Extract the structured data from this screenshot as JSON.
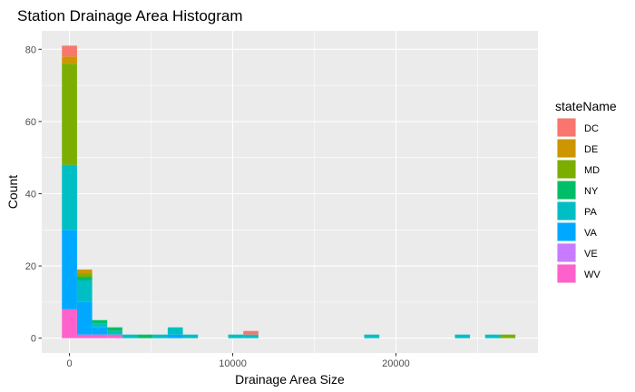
{
  "chart_data": {
    "type": "bar",
    "title": "Station Drainage Area Histogram",
    "xlabel": "Drainage Area Size",
    "ylabel": "Count",
    "xlim": [
      -1700,
      28700
    ],
    "ylim": [
      -4.1,
      85.1
    ],
    "x_ticks": [
      0,
      10000,
      20000
    ],
    "x_tick_labels": [
      "0",
      "10000",
      "20000"
    ],
    "y_ticks": [
      0,
      20,
      40,
      60,
      80
    ],
    "y_tick_labels": [
      "0",
      "20",
      "40",
      "60",
      "80"
    ],
    "grid": true,
    "legend_position": "right",
    "legend_title": "stateName",
    "bin_centers": [
      0,
      926,
      1852,
      2778,
      3704,
      4630,
      5556,
      6482,
      7408,
      8334,
      9260,
      10186,
      11112,
      12038,
      12964,
      13890,
      14816,
      15742,
      16668,
      17594,
      18520,
      19446,
      20372,
      21298,
      22224,
      23150,
      24076,
      25002,
      25928,
      26854
    ],
    "bin_width": 926,
    "series": [
      {
        "name": "WV",
        "color": "#FF61CC",
        "values": [
          8,
          1,
          1,
          1,
          0,
          0,
          0,
          0,
          0,
          0,
          0,
          0,
          0,
          0,
          0,
          0,
          0,
          0,
          0,
          0,
          0,
          0,
          0,
          0,
          0,
          0,
          0,
          0,
          0,
          0
        ]
      },
      {
        "name": "VE",
        "color": "#C77CFF",
        "values": [
          0,
          0,
          0,
          0,
          0,
          0,
          0,
          0,
          0,
          0,
          0,
          0,
          0,
          0,
          0,
          0,
          0,
          0,
          0,
          0,
          0,
          0,
          0,
          0,
          0,
          0,
          0,
          0,
          0,
          0
        ]
      },
      {
        "name": "VA",
        "color": "#00A9FF",
        "values": [
          22,
          9,
          2,
          0,
          0,
          0,
          0,
          1,
          0,
          0,
          0,
          0,
          0,
          0,
          0,
          0,
          0,
          0,
          0,
          0,
          0,
          0,
          0,
          0,
          0,
          0,
          0,
          0,
          0,
          0
        ]
      },
      {
        "name": "PA",
        "color": "#00BFC4",
        "values": [
          18,
          6,
          1,
          1,
          1,
          0,
          1,
          2,
          1,
          0,
          0,
          1,
          1,
          0,
          0,
          0,
          0,
          0,
          0,
          0,
          1,
          0,
          0,
          0,
          0,
          0,
          1,
          0,
          1,
          0
        ]
      },
      {
        "name": "NY",
        "color": "#00BE67",
        "values": [
          0,
          1,
          1,
          1,
          0,
          1,
          0,
          0,
          0,
          0,
          0,
          0,
          0,
          0,
          0,
          0,
          0,
          0,
          0,
          0,
          0,
          0,
          0,
          0,
          0,
          0,
          0,
          0,
          0,
          0
        ]
      },
      {
        "name": "MD",
        "color": "#7CAE00",
        "values": [
          28,
          1,
          0,
          0,
          0,
          0,
          0,
          0,
          0,
          0,
          0,
          0,
          0,
          0,
          0,
          0,
          0,
          0,
          0,
          0,
          0,
          0,
          0,
          0,
          0,
          0,
          0,
          0,
          0,
          1
        ]
      },
      {
        "name": "DE",
        "color": "#CD9600",
        "values": [
          2,
          1,
          0,
          0,
          0,
          0,
          0,
          0,
          0,
          0,
          0,
          0,
          0,
          0,
          0,
          0,
          0,
          0,
          0,
          0,
          0,
          0,
          0,
          0,
          0,
          0,
          0,
          0,
          0,
          0
        ]
      },
      {
        "name": "DC",
        "color": "#F8766D",
        "values": [
          3,
          0,
          0,
          0,
          0,
          0,
          0,
          0,
          0,
          0,
          0,
          0,
          1,
          0,
          0,
          0,
          0,
          0,
          0,
          0,
          0,
          0,
          0,
          0,
          0,
          0,
          0,
          0,
          0,
          0
        ]
      }
    ],
    "legend_order": [
      "DC",
      "DE",
      "MD",
      "NY",
      "PA",
      "VA",
      "VE",
      "WV"
    ]
  }
}
